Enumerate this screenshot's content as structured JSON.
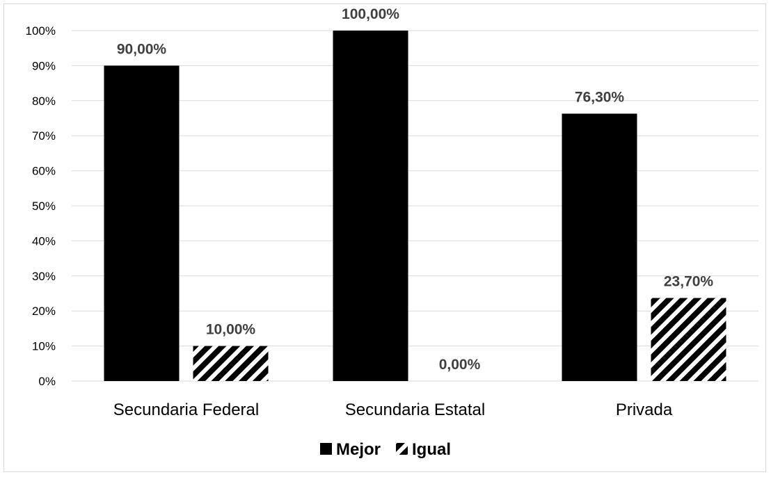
{
  "chart_data": {
    "type": "bar",
    "categories": [
      "Secundaria Federal",
      "Secundaria Estatal",
      "Privada"
    ],
    "series": [
      {
        "name": "Mejor",
        "values": [
          90.0,
          100.0,
          76.3
        ],
        "labels": [
          "90,00%",
          "100,00%",
          "76,30%"
        ],
        "fill": "solid"
      },
      {
        "name": "Igual",
        "values": [
          10.0,
          0.0,
          23.7
        ],
        "labels": [
          "10,00%",
          "0,00%",
          "23,70%"
        ],
        "fill": "diagonal-stripes"
      }
    ],
    "ylim": [
      0,
      100
    ],
    "yticks": [
      "0%",
      "10%",
      "20%",
      "30%",
      "40%",
      "50%",
      "60%",
      "70%",
      "80%",
      "90%",
      "100%"
    ],
    "grid": true,
    "legend_position": "bottom",
    "colors": {
      "bar": "#000000",
      "grid": "#d9d9d9",
      "label": "#404040"
    }
  }
}
